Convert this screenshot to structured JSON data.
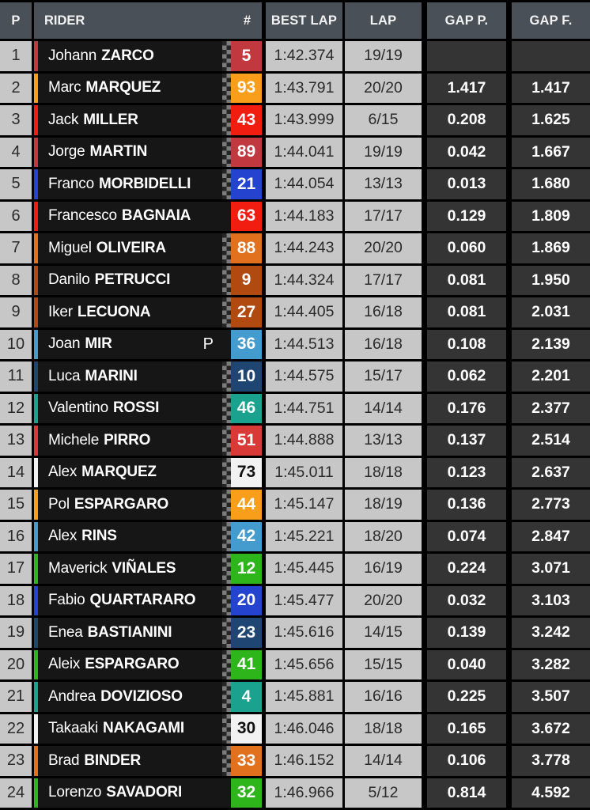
{
  "header": {
    "p": "P",
    "rider": "RIDER",
    "num": "#",
    "best_lap": "BEST LAP",
    "lap": "LAP",
    "gap_p": "GAP P.",
    "gap_f": "GAP F."
  },
  "pit_label": "P",
  "colors": {
    "header_bg": "#4a5057",
    "light_cell_bg": "#c7c7c7",
    "rider_cell_bg": "#161616",
    "gap_cell_bg": "#343434",
    "separator": "#000000"
  },
  "rows": [
    {
      "pos": "1",
      "first": "Johann",
      "last": "ZARCO",
      "num": "5",
      "team_color": "#c2383f",
      "badge_text": "#ffffff",
      "best": "1:42.374",
      "laps": "19/19",
      "gap_p": "",
      "gap_f": "",
      "finish_flag": true,
      "pit": false
    },
    {
      "pos": "2",
      "first": "Marc",
      "last": "MARQUEZ",
      "num": "93",
      "team_color": "#f99e1b",
      "badge_text": "#ffffff",
      "best": "1:43.791",
      "laps": "20/20",
      "gap_p": "1.417",
      "gap_f": "1.417",
      "finish_flag": true,
      "pit": false
    },
    {
      "pos": "3",
      "first": "Jack",
      "last": "MILLER",
      "num": "43",
      "team_color": "#f21d11",
      "badge_text": "#ffffff",
      "best": "1:43.999",
      "laps": "6/15",
      "gap_p": "0.208",
      "gap_f": "1.625",
      "finish_flag": true,
      "pit": false
    },
    {
      "pos": "4",
      "first": "Jorge",
      "last": "MARTIN",
      "num": "89",
      "team_color": "#c2383f",
      "badge_text": "#ffffff",
      "best": "1:44.041",
      "laps": "19/19",
      "gap_p": "0.042",
      "gap_f": "1.667",
      "finish_flag": true,
      "pit": false
    },
    {
      "pos": "5",
      "first": "Franco",
      "last": "MORBIDELLI",
      "num": "21",
      "team_color": "#2444cf",
      "badge_text": "#ffffff",
      "best": "1:44.054",
      "laps": "13/13",
      "gap_p": "0.013",
      "gap_f": "1.680",
      "finish_flag": true,
      "pit": false
    },
    {
      "pos": "6",
      "first": "Francesco",
      "last": "BAGNAIA",
      "num": "63",
      "team_color": "#f21d11",
      "badge_text": "#ffffff",
      "best": "1:44.183",
      "laps": "17/17",
      "gap_p": "0.129",
      "gap_f": "1.809",
      "finish_flag": false,
      "pit": false
    },
    {
      "pos": "7",
      "first": "Miguel",
      "last": "OLIVEIRA",
      "num": "88",
      "team_color": "#e2711d",
      "badge_text": "#ffffff",
      "best": "1:44.243",
      "laps": "20/20",
      "gap_p": "0.060",
      "gap_f": "1.869",
      "finish_flag": true,
      "pit": false
    },
    {
      "pos": "8",
      "first": "Danilo",
      "last": "PETRUCCI",
      "num": "9",
      "team_color": "#b04a10",
      "badge_text": "#ffffff",
      "best": "1:44.324",
      "laps": "17/17",
      "gap_p": "0.081",
      "gap_f": "1.950",
      "finish_flag": true,
      "pit": false
    },
    {
      "pos": "9",
      "first": "Iker",
      "last": "LECUONA",
      "num": "27",
      "team_color": "#b04a10",
      "badge_text": "#ffffff",
      "best": "1:44.405",
      "laps": "16/18",
      "gap_p": "0.081",
      "gap_f": "2.031",
      "finish_flag": true,
      "pit": false
    },
    {
      "pos": "10",
      "first": "Joan",
      "last": "MIR",
      "num": "36",
      "team_color": "#449bce",
      "badge_text": "#ffffff",
      "best": "1:44.513",
      "laps": "16/18",
      "gap_p": "0.108",
      "gap_f": "2.139",
      "finish_flag": false,
      "pit": true
    },
    {
      "pos": "11",
      "first": "Luca",
      "last": "MARINI",
      "num": "10",
      "team_color": "#1f4573",
      "badge_text": "#ffffff",
      "best": "1:44.575",
      "laps": "15/17",
      "gap_p": "0.062",
      "gap_f": "2.201",
      "finish_flag": true,
      "pit": false
    },
    {
      "pos": "12",
      "first": "Valentino",
      "last": "ROSSI",
      "num": "46",
      "team_color": "#1ba28f",
      "badge_text": "#ffffff",
      "best": "1:44.751",
      "laps": "14/14",
      "gap_p": "0.176",
      "gap_f": "2.377",
      "finish_flag": true,
      "pit": false
    },
    {
      "pos": "13",
      "first": "Michele",
      "last": "PIRRO",
      "num": "51",
      "team_color": "#d93a38",
      "badge_text": "#ffffff",
      "best": "1:44.888",
      "laps": "13/13",
      "gap_p": "0.137",
      "gap_f": "2.514",
      "finish_flag": true,
      "pit": false
    },
    {
      "pos": "14",
      "first": "Alex",
      "last": "MARQUEZ",
      "num": "73",
      "team_color": "#f2f2f2",
      "badge_text": "#111111",
      "best": "1:45.011",
      "laps": "18/18",
      "gap_p": "0.123",
      "gap_f": "2.637",
      "finish_flag": true,
      "pit": false
    },
    {
      "pos": "15",
      "first": "Pol",
      "last": "ESPARGARO",
      "num": "44",
      "team_color": "#f99e1b",
      "badge_text": "#ffffff",
      "best": "1:45.147",
      "laps": "18/19",
      "gap_p": "0.136",
      "gap_f": "2.773",
      "finish_flag": true,
      "pit": false
    },
    {
      "pos": "16",
      "first": "Alex",
      "last": "RINS",
      "num": "42",
      "team_color": "#449bce",
      "badge_text": "#ffffff",
      "best": "1:45.221",
      "laps": "18/20",
      "gap_p": "0.074",
      "gap_f": "2.847",
      "finish_flag": true,
      "pit": false
    },
    {
      "pos": "17",
      "first": "Maverick",
      "last": "VIÑALES",
      "num": "12",
      "team_color": "#2eb51c",
      "badge_text": "#ffffff",
      "best": "1:45.445",
      "laps": "16/19",
      "gap_p": "0.224",
      "gap_f": "3.071",
      "finish_flag": true,
      "pit": false
    },
    {
      "pos": "18",
      "first": "Fabio",
      "last": "QUARTARARO",
      "num": "20",
      "team_color": "#2444cf",
      "badge_text": "#ffffff",
      "best": "1:45.477",
      "laps": "20/20",
      "gap_p": "0.032",
      "gap_f": "3.103",
      "finish_flag": true,
      "pit": false
    },
    {
      "pos": "19",
      "first": "Enea",
      "last": "BASTIANINI",
      "num": "23",
      "team_color": "#1f4573",
      "badge_text": "#ffffff",
      "best": "1:45.616",
      "laps": "14/15",
      "gap_p": "0.139",
      "gap_f": "3.242",
      "finish_flag": true,
      "pit": false
    },
    {
      "pos": "20",
      "first": "Aleix",
      "last": "ESPARGARO",
      "num": "41",
      "team_color": "#2eb51c",
      "badge_text": "#ffffff",
      "best": "1:45.656",
      "laps": "15/15",
      "gap_p": "0.040",
      "gap_f": "3.282",
      "finish_flag": true,
      "pit": false
    },
    {
      "pos": "21",
      "first": "Andrea",
      "last": "DOVIZIOSO",
      "num": "4",
      "team_color": "#1ba28f",
      "badge_text": "#ffffff",
      "best": "1:45.881",
      "laps": "16/16",
      "gap_p": "0.225",
      "gap_f": "3.507",
      "finish_flag": true,
      "pit": false
    },
    {
      "pos": "22",
      "first": "Takaaki",
      "last": "NAKAGAMI",
      "num": "30",
      "team_color": "#f2f2f2",
      "badge_text": "#111111",
      "best": "1:46.046",
      "laps": "18/18",
      "gap_p": "0.165",
      "gap_f": "3.672",
      "finish_flag": true,
      "pit": false
    },
    {
      "pos": "23",
      "first": "Brad",
      "last": "BINDER",
      "num": "33",
      "team_color": "#e2711d",
      "badge_text": "#ffffff",
      "best": "1:46.152",
      "laps": "14/14",
      "gap_p": "0.106",
      "gap_f": "3.778",
      "finish_flag": true,
      "pit": false
    },
    {
      "pos": "24",
      "first": "Lorenzo",
      "last": "SAVADORI",
      "num": "32",
      "team_color": "#2eb51c",
      "badge_text": "#ffffff",
      "best": "1:46.966",
      "laps": "5/12",
      "gap_p": "0.814",
      "gap_f": "4.592",
      "finish_flag": false,
      "pit": false
    }
  ]
}
